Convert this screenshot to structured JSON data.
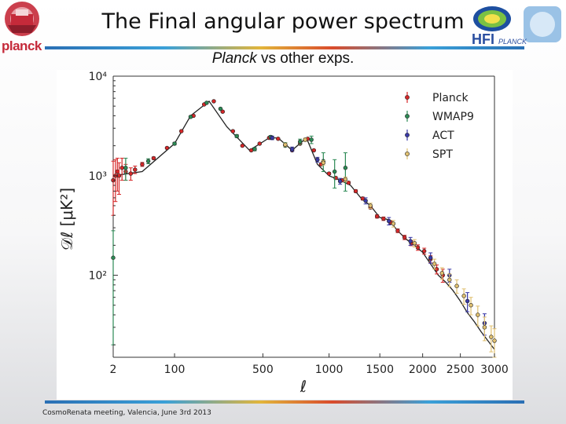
{
  "slide": {
    "title": "The Final angular power spectrum",
    "subtitle_italic": "Planck",
    "subtitle_rest": " vs other exps.",
    "footer": "CosmoRenata meeting, Valencia, June 3rd 2013",
    "logo_left_text": "planck",
    "logo_right_text_1": "HFI",
    "logo_right_text_2": "PLANCK"
  },
  "chart_data": {
    "type": "scatter",
    "xlabel": "ℓ",
    "ylabel": "𝒟ℓ [μK²]",
    "x_scale": "sqrt",
    "y_scale": "log",
    "xlim": [
      2,
      3000
    ],
    "ylim": [
      15,
      10000
    ],
    "x_ticks": [
      2,
      100,
      500,
      1000,
      1500,
      2000,
      2500,
      3000
    ],
    "x_tick_labels": [
      "2",
      "100",
      "500",
      "1000",
      "1500",
      "2000",
      "2500",
      "3000"
    ],
    "y_ticks": [
      100,
      1000,
      10000
    ],
    "y_tick_labels": [
      "10²",
      "10³",
      "10⁴"
    ],
    "legend_position": "top-right",
    "theory_curve": {
      "x": [
        2,
        30,
        100,
        150,
        220,
        300,
        420,
        540,
        600,
        700,
        810,
        900,
        1000,
        1100,
        1200,
        1300,
        1400,
        1500,
        1600,
        1700,
        1800,
        1900,
        2000,
        2100,
        2200,
        2300,
        2400,
        2500,
        2600,
        2700,
        2800,
        2900,
        3000
      ],
      "y": [
        1000,
        1100,
        2100,
        4000,
        5600,
        3100,
        1800,
        2400,
        2400,
        1800,
        2400,
        1300,
        1000,
        900,
        800,
        600,
        500,
        380,
        360,
        280,
        230,
        200,
        170,
        130,
        100,
        85,
        70,
        55,
        42,
        34,
        27,
        22,
        18
      ]
    },
    "series": [
      {
        "name": "Planck",
        "color": "#d62728",
        "points": [
          [
            2,
            900,
            500
          ],
          [
            3,
            1000,
            450
          ],
          [
            4,
            1100,
            400
          ],
          [
            5,
            1000,
            350
          ],
          [
            7,
            1200,
            300
          ],
          [
            10,
            1100,
            200
          ],
          [
            15,
            1050,
            150
          ],
          [
            20,
            1150,
            100
          ],
          [
            30,
            1300,
            60
          ],
          [
            50,
            1500,
            40
          ],
          [
            80,
            1900,
            30
          ],
          [
            120,
            2800,
            40
          ],
          [
            160,
            4000,
            50
          ],
          [
            200,
            5200,
            60
          ],
          [
            240,
            5600,
            60
          ],
          [
            280,
            4400,
            50
          ],
          [
            330,
            2800,
            40
          ],
          [
            380,
            2000,
            30
          ],
          [
            430,
            1800,
            30
          ],
          [
            480,
            2100,
            30
          ],
          [
            540,
            2400,
            30
          ],
          [
            600,
            2350,
            30
          ],
          [
            650,
            2000,
            30
          ],
          [
            700,
            1800,
            30
          ],
          [
            760,
            2100,
            30
          ],
          [
            820,
            2350,
            30
          ],
          [
            870,
            1800,
            30
          ],
          [
            930,
            1300,
            30
          ],
          [
            1000,
            1050,
            25
          ],
          [
            1060,
            950,
            25
          ],
          [
            1120,
            900,
            25
          ],
          [
            1180,
            850,
            25
          ],
          [
            1250,
            700,
            20
          ],
          [
            1320,
            590,
            20
          ],
          [
            1400,
            480,
            15
          ],
          [
            1470,
            390,
            15
          ],
          [
            1540,
            370,
            15
          ],
          [
            1620,
            340,
            15
          ],
          [
            1700,
            280,
            12
          ],
          [
            1780,
            240,
            12
          ],
          [
            1860,
            210,
            12
          ],
          [
            1940,
            190,
            12
          ],
          [
            2020,
            175,
            12
          ],
          [
            2100,
            145,
            12
          ],
          [
            2180,
            115,
            12
          ],
          [
            2260,
            100,
            15
          ]
        ]
      },
      {
        "name": "WMAP9",
        "color": "#2c8a55",
        "points": [
          [
            2,
            150,
            130
          ],
          [
            10,
            1200,
            300
          ],
          [
            40,
            1400,
            80
          ],
          [
            100,
            2100,
            60
          ],
          [
            150,
            3900,
            70
          ],
          [
            210,
            5400,
            80
          ],
          [
            270,
            4700,
            80
          ],
          [
            350,
            2500,
            80
          ],
          [
            450,
            1850,
            70
          ],
          [
            550,
            2450,
            80
          ],
          [
            650,
            2050,
            100
          ],
          [
            760,
            2200,
            130
          ],
          [
            850,
            2300,
            200
          ],
          [
            950,
            1400,
            300
          ],
          [
            1050,
            1100,
            350
          ],
          [
            1150,
            1200,
            500
          ]
        ]
      },
      {
        "name": "ACT",
        "color": "#3a3aa8",
        "points": [
          [
            560,
            2400,
            100
          ],
          [
            700,
            1850,
            90
          ],
          [
            900,
            1450,
            80
          ],
          [
            1100,
            880,
            60
          ],
          [
            1350,
            560,
            40
          ],
          [
            1600,
            350,
            30
          ],
          [
            1850,
            220,
            20
          ],
          [
            2100,
            150,
            18
          ],
          [
            2350,
            100,
            15
          ],
          [
            2600,
            55,
            12
          ],
          [
            2850,
            33,
            8
          ]
        ]
      },
      {
        "name": "SPT",
        "color": "#e0c070",
        "points": [
          [
            650,
            2050,
            80
          ],
          [
            800,
            2300,
            90
          ],
          [
            950,
            1350,
            70
          ],
          [
            1150,
            920,
            50
          ],
          [
            1400,
            500,
            30
          ],
          [
            1650,
            330,
            25
          ],
          [
            1900,
            210,
            18
          ],
          [
            2150,
            130,
            15
          ],
          [
            2250,
            105,
            14
          ],
          [
            2350,
            90,
            13
          ],
          [
            2450,
            78,
            12
          ],
          [
            2550,
            62,
            11
          ],
          [
            2650,
            50,
            10
          ],
          [
            2750,
            40,
            9
          ],
          [
            2850,
            30,
            8
          ],
          [
            2950,
            24,
            7
          ],
          [
            3000,
            22,
            7
          ]
        ]
      }
    ]
  }
}
